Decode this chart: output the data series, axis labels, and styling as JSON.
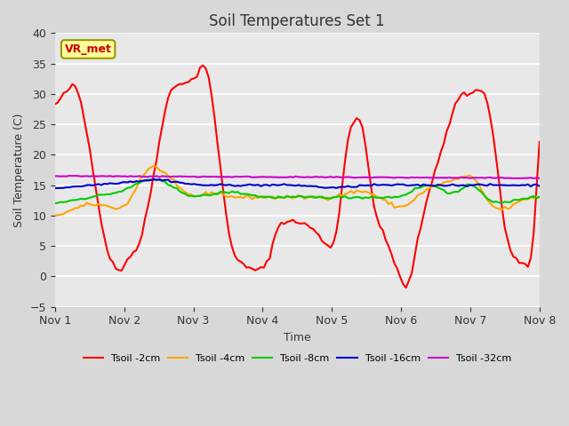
{
  "title": "Soil Temperatures Set 1",
  "xlabel": "Time",
  "ylabel": "Soil Temperature (C)",
  "ylim": [
    -5,
    40
  ],
  "yticks": [
    -5,
    0,
    5,
    10,
    15,
    20,
    25,
    30,
    35,
    40
  ],
  "fig_bg_color": "#d8d8d8",
  "plot_bg_color": "#e8e8e8",
  "series_colors": {
    "Tsoil -2cm": "#ff0000",
    "Tsoil -4cm": "#ffa500",
    "Tsoil -8cm": "#00cc00",
    "Tsoil -16cm": "#0000cc",
    "Tsoil -32cm": "#cc00cc"
  },
  "annotation_text": "VR_met",
  "annotation_color": "#cc0000",
  "annotation_bg": "#ffff99",
  "annotation_border": "#999900",
  "n_points": 168,
  "days": [
    "Nov 1",
    "Nov 2",
    "Nov 3",
    "Nov 4",
    "Nov 5",
    "Nov 6",
    "Nov 7",
    "Nov 8"
  ],
  "line_width": 1.5,
  "tsoil_2_ctrl_x": [
    0.0,
    0.1,
    0.3,
    0.5,
    0.7,
    0.9,
    1.05,
    1.2,
    1.4,
    1.6,
    1.8,
    1.95,
    2.05,
    2.15,
    2.3,
    2.5,
    2.7,
    2.9,
    3.05,
    3.2,
    3.5,
    3.7,
    3.9,
    4.05,
    4.2,
    4.4,
    4.6,
    4.8,
    5.02,
    5.08,
    5.2,
    5.4,
    5.6,
    5.8,
    6.05,
    6.15,
    6.3,
    6.5,
    6.7,
    6.9,
    7.0
  ],
  "tsoil_2_ctrl_y": [
    28,
    30,
    32,
    20,
    5,
    0,
    3.5,
    4.5,
    16,
    30,
    32,
    32,
    33,
    37,
    25,
    5,
    1.5,
    1,
    1.5,
    9,
    9,
    8,
    5,
    5,
    24,
    27,
    10,
    5,
    -2,
    -3,
    5,
    15,
    22,
    30,
    30,
    32,
    25,
    5,
    2,
    1.5,
    31
  ],
  "tsoil_4_ctrl_x": [
    0.0,
    0.5,
    1.0,
    1.3,
    1.5,
    1.8,
    2.0,
    2.3,
    2.5,
    2.8,
    3.0,
    3.3,
    3.5,
    3.8,
    4.0,
    4.3,
    4.5,
    4.8,
    5.0,
    5.3,
    5.5,
    5.8,
    6.0,
    6.3,
    6.5,
    6.8,
    7.0
  ],
  "tsoil_4_ctrl_y": [
    10,
    12,
    11,
    18,
    18,
    14,
    13,
    14,
    13,
    13,
    13,
    13,
    13,
    13,
    13,
    14,
    14,
    12,
    11,
    14,
    15,
    16,
    17,
    11,
    11,
    13,
    13
  ],
  "tsoil_8_ctrl_x": [
    0.0,
    0.5,
    1.0,
    1.3,
    1.5,
    1.8,
    2.0,
    2.3,
    2.5,
    2.8,
    3.0,
    3.5,
    4.0,
    4.5,
    5.0,
    5.3,
    5.5,
    5.8,
    6.0,
    6.3,
    6.5,
    6.8,
    7.0
  ],
  "tsoil_8_ctrl_y": [
    12,
    13,
    14,
    16,
    16,
    14,
    13,
    13.5,
    14,
    13.5,
    13,
    13,
    13,
    13,
    13,
    15,
    15,
    13,
    16,
    12,
    12,
    13,
    13
  ],
  "tsoil_16_ctrl_x": [
    0.0,
    1.0,
    1.5,
    2.0,
    2.5,
    3.0,
    3.5,
    4.0,
    4.5,
    5.0,
    5.5,
    6.0,
    6.5,
    7.0
  ],
  "tsoil_16_ctrl_y": [
    14.5,
    15.5,
    16,
    15,
    15,
    15,
    15,
    14.5,
    15,
    15,
    15,
    15,
    15,
    15
  ]
}
